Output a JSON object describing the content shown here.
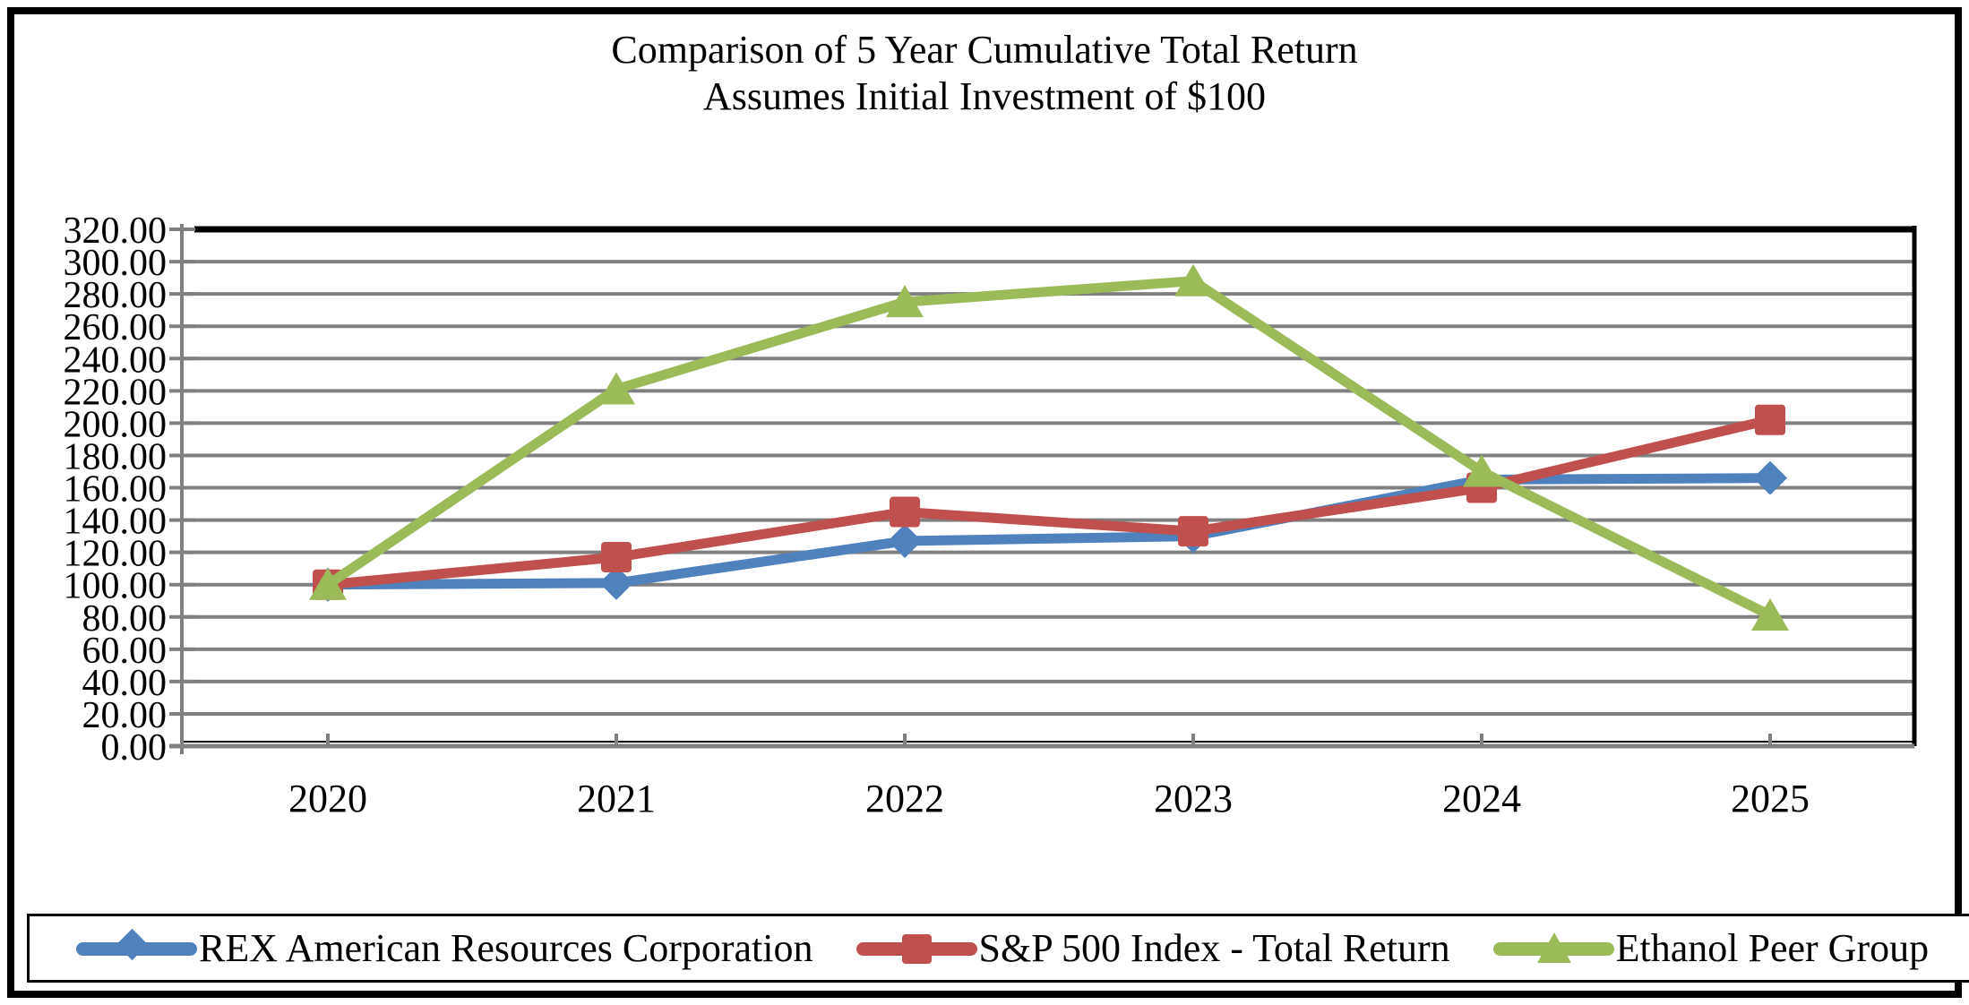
{
  "title": {
    "line1": "Comparison of 5 Year Cumulative Total Return",
    "line2": "Assumes Initial Investment of $100"
  },
  "chart_data": {
    "type": "line",
    "x": [
      "2020",
      "2021",
      "2022",
      "2023",
      "2024",
      "2025"
    ],
    "series": [
      {
        "name": "REX American Resources Corporation",
        "marker": "diamond",
        "color": "#4F81BD",
        "values": [
          100.0,
          101.0,
          127.0,
          130.0,
          165.0,
          166.0
        ]
      },
      {
        "name": "S&P 500 Index - Total Return",
        "marker": "square",
        "color": "#C0504D",
        "values": [
          100.0,
          117.0,
          145.0,
          133.0,
          160.0,
          202.0
        ]
      },
      {
        "name": "Ethanol Peer Group",
        "marker": "triangle",
        "color": "#9BBB59",
        "values": [
          100.0,
          221.0,
          275.0,
          288.0,
          170.0,
          81.0
        ]
      }
    ],
    "ylim": [
      0,
      320
    ],
    "ytick_step": 20,
    "ytick_decimals": 2,
    "grid": "horizontal",
    "gridline_color": "#808080",
    "axis_color": "#808080",
    "plot_border_color": "#000000",
    "legend_position": "bottom"
  }
}
